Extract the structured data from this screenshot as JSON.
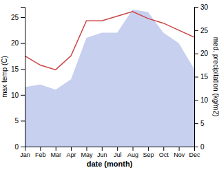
{
  "chart_data": {
    "type": "area",
    "xlabel": "date (month)",
    "ylabel": "max temp (C)",
    "y2label": "med. precipitation (kg/m2)",
    "categories": [
      "Jan",
      "Feb",
      "Mar",
      "Apr",
      "May",
      "Jun",
      "Jul",
      "Aug",
      "Sep",
      "Oct",
      "Nov",
      "Dec"
    ],
    "series": [
      {
        "type": "area",
        "color": "#c8d0f0",
        "values": [
          11.5,
          12.0,
          11.0,
          13.0,
          21.0,
          22.0,
          22.0,
          26.5,
          26.0,
          22.0,
          20.0,
          15.0
        ]
      },
      {
        "type": "line",
        "color": "#cc4444",
        "axis": "y2",
        "values": [
          19.5,
          17.5,
          16.5,
          19.5,
          27.0,
          27.0,
          28.0,
          29.0,
          27.5,
          26.5,
          25.0,
          23.5
        ]
      }
    ],
    "ylim": [
      0,
      27
    ],
    "yticks": [
      0,
      5,
      10,
      15,
      20,
      25
    ],
    "y2lim": [
      0,
      30
    ],
    "y2ticks": [
      0,
      5,
      10,
      15,
      20,
      25,
      30
    ],
    "grid": false
  }
}
